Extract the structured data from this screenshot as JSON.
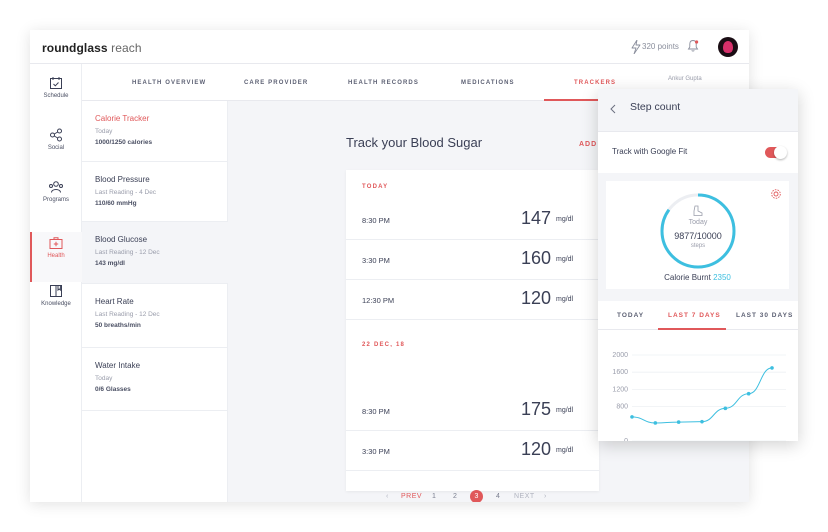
{
  "app": {
    "logo_bold": "roundglass",
    "logo_light": "reach",
    "points": "320 points"
  },
  "sidebar": {
    "items": [
      {
        "label": "Schedule"
      },
      {
        "label": "Social"
      },
      {
        "label": "Programs"
      },
      {
        "label": "Health"
      },
      {
        "label": "Knowledge"
      }
    ]
  },
  "tabs": {
    "items": [
      {
        "label": "HEALTH OVERVIEW"
      },
      {
        "label": "CARE PROVIDER"
      },
      {
        "label": "HEALTH RECORDS"
      },
      {
        "label": "MEDICATIONS"
      },
      {
        "label": "TRACKERS"
      }
    ],
    "user": "Ankur Gupta"
  },
  "trackers": [
    {
      "name": "Calorie Tracker",
      "sub": "Today",
      "value": "1000/1250 calories"
    },
    {
      "name": "Blood Pressure",
      "sub": "Last Reading - 4 Dec",
      "value": "110/60 mmHg"
    },
    {
      "name": "Blood Glucose",
      "sub": "Last Reading - 12 Dec",
      "value": "143 mg/dl"
    },
    {
      "name": "Heart Rate",
      "sub": "Last Reading - 12 Dec",
      "value": "50 breaths/min"
    },
    {
      "name": "Water Intake",
      "sub": "Today",
      "value": "0/6 Glasses"
    }
  ],
  "content": {
    "title": "Track your Blood Sugar",
    "add_label": "ADD",
    "groups": [
      {
        "label": "TODAY"
      },
      {
        "label": "22 DEC, 18"
      }
    ],
    "readings": [
      {
        "time": "8:30 PM",
        "value": "147",
        "unit": "mg/dl"
      },
      {
        "time": "3:30 PM",
        "value": "160",
        "unit": "mg/dl"
      },
      {
        "time": "12:30 PM",
        "value": "120",
        "unit": "mg/dl"
      },
      {
        "time": "8:30 PM",
        "value": "175",
        "unit": "mg/dl"
      },
      {
        "time": "3:30 PM",
        "value": "120",
        "unit": "mg/dl"
      }
    ],
    "pager": {
      "prev": "PREV",
      "pages": [
        "1",
        "2",
        "3",
        "4"
      ],
      "current": "3",
      "next": "NEXT"
    }
  },
  "step_panel": {
    "title": "Step count",
    "gfit_label": "Track with Google Fit",
    "gfit_enabled": true,
    "ring_today": "Today",
    "ring_steps": "9877/10000",
    "ring_unit": "steps",
    "progress": 0.9877,
    "calorie_label": "Calorie Burnt",
    "calorie_value": "2350",
    "range_tabs": [
      "TODAY",
      "LAST 7 DAYS",
      "LAST 30 DAYS"
    ],
    "active_range": "LAST 7 DAYS"
  },
  "chart_data": {
    "type": "line",
    "y_ticks": [
      "2000",
      "1600",
      "1200",
      "800",
      "0"
    ],
    "ylim": [
      0,
      2000
    ],
    "values": [
      560,
      420,
      440,
      450,
      760,
      1100,
      1700
    ],
    "grid": true
  },
  "colors": {
    "accent": "#e0585a",
    "chart_line": "#3dbfe0",
    "text": "#3a3f55"
  }
}
